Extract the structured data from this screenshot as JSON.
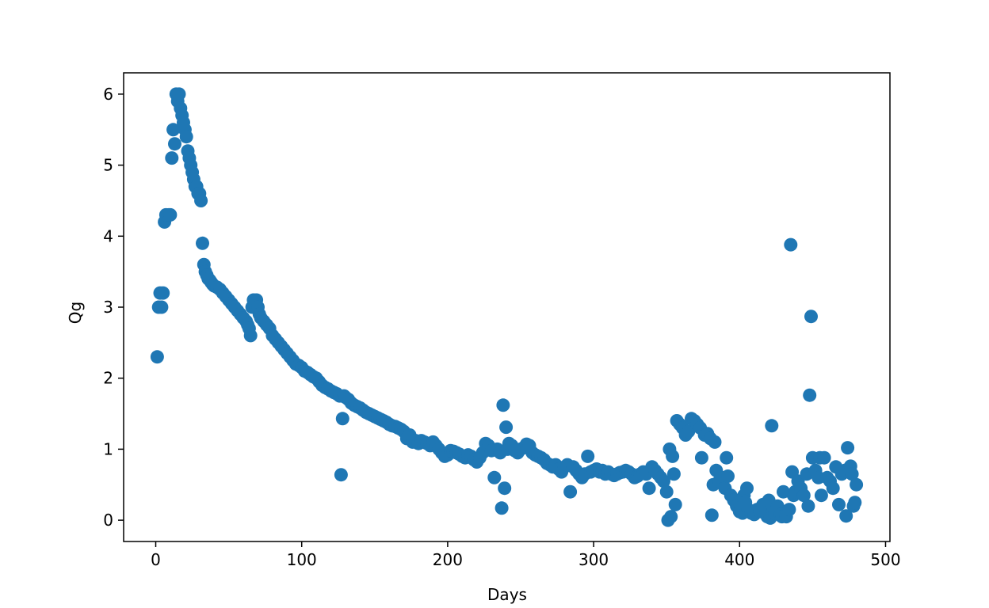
{
  "chart_data": {
    "type": "scatter",
    "title": "",
    "xlabel": "Days",
    "ylabel": "Qg",
    "xlim": [
      -22,
      503
    ],
    "ylim": [
      -0.3,
      6.3
    ],
    "xticks": [
      0,
      100,
      200,
      300,
      400,
      500
    ],
    "yticks": [
      0,
      1,
      2,
      3,
      4,
      5,
      6
    ],
    "grid": false,
    "legend": "none",
    "marker_color": "#1f77b4",
    "series": [
      {
        "points": [
          [
            1,
            2.3
          ],
          [
            2,
            3.0
          ],
          [
            3,
            3.2
          ],
          [
            4,
            3.0
          ],
          [
            5,
            3.2
          ],
          [
            6,
            4.2
          ],
          [
            7,
            4.3
          ],
          [
            9,
            4.3
          ],
          [
            10,
            4.3
          ],
          [
            11,
            5.1
          ],
          [
            12,
            5.5
          ],
          [
            13,
            5.3
          ],
          [
            14,
            6.0
          ],
          [
            15,
            5.9
          ],
          [
            16,
            6.0
          ],
          [
            17,
            5.8
          ],
          [
            18,
            5.7
          ],
          [
            19,
            5.6
          ],
          [
            20,
            5.5
          ],
          [
            21,
            5.4
          ],
          [
            22,
            5.2
          ],
          [
            23,
            5.1
          ],
          [
            24,
            5.0
          ],
          [
            25,
            4.9
          ],
          [
            26,
            4.8
          ],
          [
            27,
            4.7
          ],
          [
            28,
            4.7
          ],
          [
            29,
            4.6
          ],
          [
            30,
            4.6
          ],
          [
            31,
            4.5
          ],
          [
            32,
            3.9
          ],
          [
            33,
            3.6
          ],
          [
            34,
            3.5
          ],
          [
            35,
            3.45
          ],
          [
            36,
            3.4
          ],
          [
            37,
            3.38
          ],
          [
            38,
            3.35
          ],
          [
            39,
            3.32
          ],
          [
            40,
            3.3
          ],
          [
            42,
            3.28
          ],
          [
            44,
            3.25
          ],
          [
            46,
            3.2
          ],
          [
            48,
            3.15
          ],
          [
            50,
            3.1
          ],
          [
            52,
            3.05
          ],
          [
            54,
            3.0
          ],
          [
            56,
            2.95
          ],
          [
            58,
            2.9
          ],
          [
            60,
            2.85
          ],
          [
            62,
            2.8
          ],
          [
            63,
            2.75
          ],
          [
            64,
            2.7
          ],
          [
            65,
            2.6
          ],
          [
            66,
            3.0
          ],
          [
            67,
            3.1
          ],
          [
            68,
            3.05
          ],
          [
            69,
            3.1
          ],
          [
            70,
            3.0
          ],
          [
            71,
            2.9
          ],
          [
            72,
            2.85
          ],
          [
            74,
            2.8
          ],
          [
            76,
            2.75
          ],
          [
            78,
            2.7
          ],
          [
            80,
            2.6
          ],
          [
            82,
            2.55
          ],
          [
            84,
            2.5
          ],
          [
            86,
            2.45
          ],
          [
            88,
            2.4
          ],
          [
            90,
            2.35
          ],
          [
            92,
            2.3
          ],
          [
            94,
            2.25
          ],
          [
            96,
            2.2
          ],
          [
            98,
            2.18
          ],
          [
            100,
            2.15
          ],
          [
            102,
            2.1
          ],
          [
            104,
            2.08
          ],
          [
            106,
            2.05
          ],
          [
            108,
            2.02
          ],
          [
            110,
            2.0
          ],
          [
            112,
            1.95
          ],
          [
            114,
            1.9
          ],
          [
            116,
            1.87
          ],
          [
            118,
            1.85
          ],
          [
            120,
            1.82
          ],
          [
            122,
            1.8
          ],
          [
            124,
            1.78
          ],
          [
            126,
            1.75
          ],
          [
            127,
            0.64
          ],
          [
            128,
            1.43
          ],
          [
            129,
            1.75
          ],
          [
            130,
            1.73
          ],
          [
            132,
            1.7
          ],
          [
            134,
            1.65
          ],
          [
            136,
            1.62
          ],
          [
            138,
            1.6
          ],
          [
            140,
            1.58
          ],
          [
            142,
            1.55
          ],
          [
            144,
            1.52
          ],
          [
            146,
            1.5
          ],
          [
            148,
            1.48
          ],
          [
            150,
            1.46
          ],
          [
            152,
            1.44
          ],
          [
            154,
            1.42
          ],
          [
            156,
            1.4
          ],
          [
            158,
            1.38
          ],
          [
            160,
            1.35
          ],
          [
            162,
            1.33
          ],
          [
            164,
            1.32
          ],
          [
            166,
            1.3
          ],
          [
            168,
            1.28
          ],
          [
            170,
            1.25
          ],
          [
            172,
            1.15
          ],
          [
            174,
            1.2
          ],
          [
            176,
            1.1
          ],
          [
            178,
            1.12
          ],
          [
            180,
            1.08
          ],
          [
            182,
            1.12
          ],
          [
            184,
            1.1
          ],
          [
            186,
            1.08
          ],
          [
            188,
            1.05
          ],
          [
            190,
            1.1
          ],
          [
            192,
            1.05
          ],
          [
            194,
            1.0
          ],
          [
            196,
            0.95
          ],
          [
            198,
            0.9
          ],
          [
            200,
            0.92
          ],
          [
            202,
            0.98
          ],
          [
            204,
            0.97
          ],
          [
            206,
            0.95
          ],
          [
            208,
            0.93
          ],
          [
            210,
            0.9
          ],
          [
            212,
            0.88
          ],
          [
            214,
            0.92
          ],
          [
            216,
            0.9
          ],
          [
            218,
            0.85
          ],
          [
            220,
            0.82
          ],
          [
            222,
            0.88
          ],
          [
            224,
            0.95
          ],
          [
            226,
            1.08
          ],
          [
            228,
            1.05
          ],
          [
            230,
            0.98
          ],
          [
            232,
            0.6
          ],
          [
            234,
            1.0
          ],
          [
            236,
            0.95
          ],
          [
            237,
            0.17
          ],
          [
            238,
            1.62
          ],
          [
            239,
            0.45
          ],
          [
            240,
            1.31
          ],
          [
            241,
            1.0
          ],
          [
            242,
            1.08
          ],
          [
            244,
            1.05
          ],
          [
            246,
            0.98
          ],
          [
            248,
            0.95
          ],
          [
            250,
            1.0
          ],
          [
            252,
            1.02
          ],
          [
            254,
            1.07
          ],
          [
            256,
            1.05
          ],
          [
            258,
            0.95
          ],
          [
            260,
            0.92
          ],
          [
            262,
            0.9
          ],
          [
            264,
            0.88
          ],
          [
            266,
            0.85
          ],
          [
            268,
            0.8
          ],
          [
            270,
            0.78
          ],
          [
            272,
            0.75
          ],
          [
            274,
            0.78
          ],
          [
            276,
            0.72
          ],
          [
            278,
            0.68
          ],
          [
            280,
            0.75
          ],
          [
            282,
            0.78
          ],
          [
            284,
            0.4
          ],
          [
            286,
            0.75
          ],
          [
            288,
            0.7
          ],
          [
            290,
            0.65
          ],
          [
            292,
            0.6
          ],
          [
            294,
            0.65
          ],
          [
            296,
            0.9
          ],
          [
            298,
            0.68
          ],
          [
            300,
            0.7
          ],
          [
            302,
            0.72
          ],
          [
            304,
            0.68
          ],
          [
            306,
            0.7
          ],
          [
            308,
            0.65
          ],
          [
            310,
            0.68
          ],
          [
            312,
            0.65
          ],
          [
            314,
            0.63
          ],
          [
            316,
            0.65
          ],
          [
            318,
            0.67
          ],
          [
            320,
            0.68
          ],
          [
            322,
            0.7
          ],
          [
            324,
            0.68
          ],
          [
            326,
            0.65
          ],
          [
            328,
            0.6
          ],
          [
            330,
            0.62
          ],
          [
            332,
            0.65
          ],
          [
            334,
            0.68
          ],
          [
            336,
            0.65
          ],
          [
            338,
            0.45
          ],
          [
            340,
            0.75
          ],
          [
            342,
            0.7
          ],
          [
            344,
            0.65
          ],
          [
            346,
            0.6
          ],
          [
            348,
            0.55
          ],
          [
            350,
            0.4
          ],
          [
            351,
            0.0
          ],
          [
            352,
            1.0
          ],
          [
            353,
            0.05
          ],
          [
            354,
            0.9
          ],
          [
            355,
            0.65
          ],
          [
            356,
            0.22
          ],
          [
            357,
            1.4
          ],
          [
            359,
            1.35
          ],
          [
            361,
            1.3
          ],
          [
            363,
            1.2
          ],
          [
            365,
            1.25
          ],
          [
            367,
            1.43
          ],
          [
            369,
            1.4
          ],
          [
            371,
            1.35
          ],
          [
            373,
            1.3
          ],
          [
            374,
            0.88
          ],
          [
            376,
            1.2
          ],
          [
            378,
            1.22
          ],
          [
            380,
            1.15
          ],
          [
            381,
            0.07
          ],
          [
            382,
            0.5
          ],
          [
            383,
            1.1
          ],
          [
            384,
            0.7
          ],
          [
            386,
            0.55
          ],
          [
            388,
            0.6
          ],
          [
            390,
            0.45
          ],
          [
            391,
            0.88
          ],
          [
            392,
            0.62
          ],
          [
            394,
            0.35
          ],
          [
            396,
            0.28
          ],
          [
            398,
            0.2
          ],
          [
            400,
            0.12
          ],
          [
            401,
            0.18
          ],
          [
            402,
            0.1
          ],
          [
            403,
            0.35
          ],
          [
            404,
            0.25
          ],
          [
            405,
            0.45
          ],
          [
            406,
            0.15
          ],
          [
            408,
            0.1
          ],
          [
            410,
            0.08
          ],
          [
            412,
            0.15
          ],
          [
            414,
            0.12
          ],
          [
            416,
            0.22
          ],
          [
            418,
            0.1
          ],
          [
            419,
            0.05
          ],
          [
            420,
            0.28
          ],
          [
            421,
            0.03
          ],
          [
            422,
            1.33
          ],
          [
            423,
            0.15
          ],
          [
            424,
            0.1
          ],
          [
            426,
            0.2
          ],
          [
            428,
            0.08
          ],
          [
            429,
            0.05
          ],
          [
            430,
            0.4
          ],
          [
            432,
            0.05
          ],
          [
            434,
            0.15
          ],
          [
            435,
            3.88
          ],
          [
            436,
            0.68
          ],
          [
            437,
            0.35
          ],
          [
            438,
            0.4
          ],
          [
            440,
            0.55
          ],
          [
            442,
            0.45
          ],
          [
            444,
            0.35
          ],
          [
            446,
            0.65
          ],
          [
            447,
            0.2
          ],
          [
            448,
            1.76
          ],
          [
            449,
            2.87
          ],
          [
            450,
            0.88
          ],
          [
            452,
            0.7
          ],
          [
            454,
            0.6
          ],
          [
            455,
            0.88
          ],
          [
            456,
            0.35
          ],
          [
            458,
            0.88
          ],
          [
            460,
            0.6
          ],
          [
            462,
            0.55
          ],
          [
            464,
            0.45
          ],
          [
            466,
            0.75
          ],
          [
            468,
            0.22
          ],
          [
            470,
            0.65
          ],
          [
            472,
            0.7
          ],
          [
            473,
            0.06
          ],
          [
            474,
            1.02
          ],
          [
            476,
            0.76
          ],
          [
            477,
            0.65
          ],
          [
            478,
            0.2
          ],
          [
            479,
            0.25
          ],
          [
            480,
            0.5
          ]
        ]
      }
    ]
  }
}
